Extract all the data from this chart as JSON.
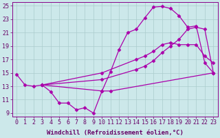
{
  "background_color": "#cce8ea",
  "grid_color": "#aacccc",
  "line_color": "#aa00aa",
  "marker": "D",
  "markersize": 2.5,
  "linewidth": 0.9,
  "xlabel": "Windchill (Refroidissement éolien,°C)",
  "xlabel_fontsize": 6.5,
  "tick_fontsize": 6.0,
  "xlim": [
    -0.5,
    23.5
  ],
  "ylim": [
    8.5,
    25.5
  ],
  "xticks": [
    0,
    1,
    2,
    3,
    4,
    5,
    6,
    7,
    8,
    9,
    10,
    11,
    12,
    13,
    14,
    15,
    16,
    17,
    18,
    19,
    20,
    21,
    22,
    23
  ],
  "yticks": [
    9,
    11,
    13,
    15,
    17,
    19,
    21,
    23,
    25
  ],
  "lines": [
    {
      "x": [
        0,
        1,
        2,
        3,
        10,
        11,
        12,
        13,
        14,
        15,
        16,
        17,
        18,
        19,
        20,
        21,
        22,
        23
      ],
      "y": [
        14.8,
        13.2,
        13.0,
        13.2,
        12.3,
        15.2,
        18.5,
        21.0,
        21.5,
        23.2,
        24.8,
        24.9,
        24.6,
        23.5,
        21.8,
        22.0,
        16.5,
        15.0
      ]
    },
    {
      "x": [
        3,
        4,
        5,
        6,
        7,
        8,
        9,
        10,
        11,
        23
      ],
      "y": [
        13.2,
        12.2,
        10.5,
        10.5,
        9.5,
        9.8,
        9.0,
        12.3,
        12.3,
        15.0
      ]
    },
    {
      "x": [
        3,
        10,
        14,
        15,
        16,
        17,
        18,
        19,
        20,
        21,
        22,
        23
      ],
      "y": [
        13.2,
        15.0,
        17.0,
        17.5,
        18.2,
        19.2,
        19.5,
        19.2,
        19.2,
        19.2,
        17.5,
        16.5
      ]
    },
    {
      "x": [
        3,
        10,
        14,
        15,
        16,
        17,
        18,
        19,
        20,
        21,
        22,
        23
      ],
      "y": [
        13.2,
        14.0,
        15.5,
        16.0,
        16.8,
        18.0,
        19.0,
        20.0,
        21.5,
        21.8,
        21.5,
        15.0
      ]
    }
  ]
}
